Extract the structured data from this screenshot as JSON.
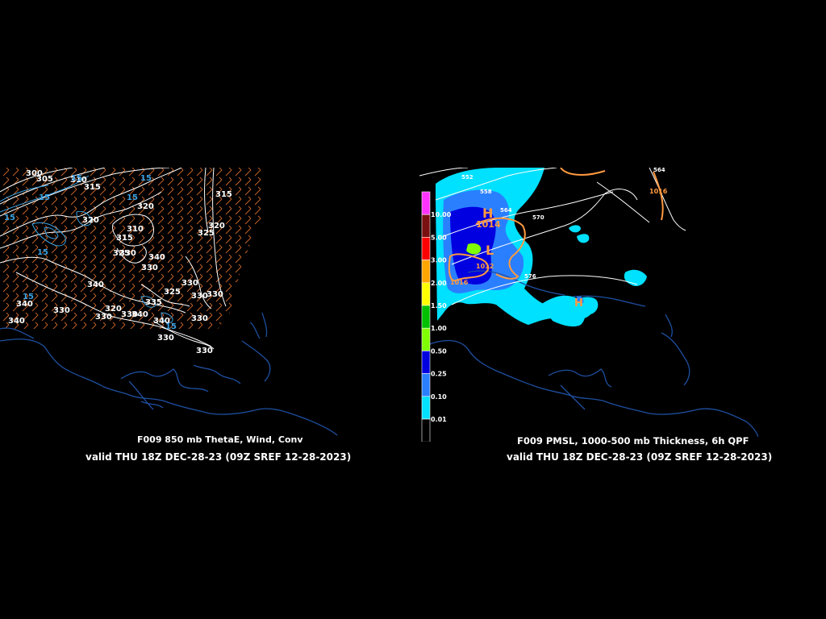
{
  "left_panel": {
    "title": "F009 850 mb ThetaE, Wind, Conv",
    "valid": "valid THU 18Z DEC-28-23 (09Z SREF 12-28-2023)",
    "contour_labels": [
      "300",
      "305",
      "310",
      "315",
      "315",
      "320",
      "320",
      "310",
      "315",
      "320",
      "325",
      "330",
      "330",
      "340",
      "340",
      "330",
      "325",
      "320",
      "330",
      "330",
      "335",
      "340",
      "340",
      "330",
      "330",
      "340",
      "330",
      "330",
      "340",
      "330",
      "330",
      "325"
    ],
    "conv_labels": [
      "15",
      "15",
      "15",
      "15",
      "15",
      "15",
      "15",
      "15"
    ]
  },
  "right_panel": {
    "title": "F009 PMSL, 1000-500 mb Thickness, 6h QPF",
    "valid": "valid THU 18Z DEC-28-23 (09Z SREF 12-28-2023)",
    "thickness_labels": [
      "552",
      "558",
      "564",
      "570",
      "564",
      "576"
    ],
    "pressure_labels": [
      "1014",
      "1016",
      "1012",
      "1016"
    ],
    "high_symbol": "H",
    "low_symbol": "L",
    "legend": [
      {
        "label": "10.00",
        "color": "#ff33ff"
      },
      {
        "label": "5.00",
        "color": "#7a1010"
      },
      {
        "label": "3.00",
        "color": "#ff0000"
      },
      {
        "label": "2.00",
        "color": "#ffa500"
      },
      {
        "label": "1.50",
        "color": "#ffff00"
      },
      {
        "label": "1.00",
        "color": "#00c000"
      },
      {
        "label": "0.50",
        "color": "#80ff00"
      },
      {
        "label": "0.25",
        "color": "#0000e0"
      },
      {
        "label": "0.10",
        "color": "#2a7fff"
      },
      {
        "label": "0.01",
        "color": "#00e0ff"
      },
      {
        "label": "",
        "color": "#000000"
      }
    ]
  },
  "colors": {
    "background": "#000000",
    "coastline": "#1e4fa0",
    "contour": "#ffffff",
    "wind": "#c86428",
    "conv": "#3aa0e0",
    "pressure": "#ff9a40"
  }
}
